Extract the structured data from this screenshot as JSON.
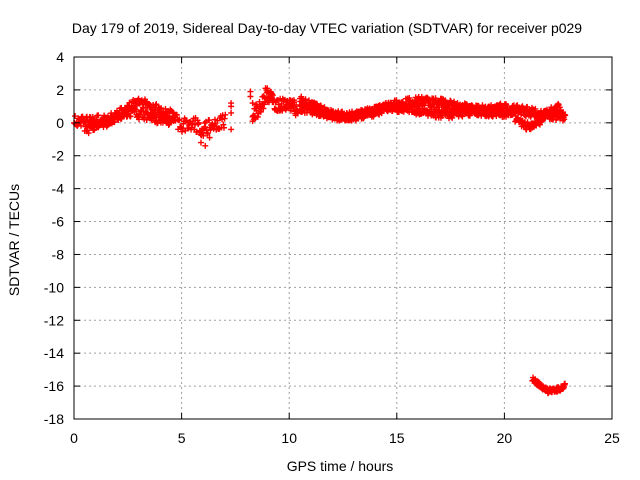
{
  "chart_data": {
    "type": "scatter",
    "title": "Day 179 of 2019, Sidereal Day-to-day VTEC variation (SDTVAR) for receiver p029",
    "xlabel": "GPS time / hours",
    "ylabel": "SDTVAR / TECUs",
    "xlim": [
      0,
      25
    ],
    "ylim": [
      -18,
      4
    ],
    "xticks": [
      0,
      5,
      10,
      15,
      20,
      25
    ],
    "yticks": [
      -18,
      -16,
      -14,
      -12,
      -10,
      -8,
      -6,
      -4,
      -2,
      0,
      2,
      4
    ],
    "grid": true,
    "marker": "plus",
    "series_color": "#ff0000",
    "series": [
      {
        "name": "p029",
        "bands": [
          {
            "x": [
              0.0,
              1.0,
              2.0,
              3.0,
              4.0,
              4.6
            ],
            "y": [
              0.1,
              0.1,
              0.4,
              1.3,
              0.7,
              0.4
            ],
            "spread": 0.35,
            "step": 0.05
          },
          {
            "x": [
              0.5,
              1.5,
              2.5,
              3.5,
              4.5
            ],
            "y": [
              -0.4,
              0.0,
              0.7,
              0.3,
              0.1
            ],
            "spread": 0.3,
            "step": 0.06
          },
          {
            "x": [
              4.6,
              5.0,
              5.5,
              6.0,
              6.5,
              7.0
            ],
            "y": [
              0.2,
              -0.1,
              0.0,
              -0.4,
              -0.1,
              0.1
            ],
            "spread": 0.45,
            "step": 0.06
          },
          {
            "x": [
              8.3,
              8.6,
              9.0,
              9.5,
              10.0,
              10.4
            ],
            "y": [
              0.4,
              0.9,
              1.7,
              1.0,
              1.1,
              0.8
            ],
            "spread": 0.45,
            "step": 0.04
          },
          {
            "x": [
              10.5,
              11.0,
              12.0,
              13.0,
              14.0,
              15.0,
              16.0,
              17.0,
              18.0,
              19.0,
              20.0,
              21.0,
              22.0,
              22.8
            ],
            "y": [
              1.4,
              1.0,
              0.5,
              0.4,
              0.7,
              1.1,
              1.3,
              1.2,
              0.9,
              0.8,
              0.9,
              0.7,
              0.5,
              0.4
            ],
            "spread": 0.3,
            "step": 0.04
          },
          {
            "x": [
              10.5,
              11.5,
              12.5,
              13.5,
              14.5,
              15.5,
              16.5,
              17.5,
              18.5,
              19.5,
              20.5
            ],
            "y": [
              0.9,
              0.6,
              0.3,
              0.5,
              1.0,
              0.8,
              0.6,
              0.5,
              0.7,
              0.6,
              0.6
            ],
            "spread": 0.25,
            "step": 0.05
          },
          {
            "x": [
              20.5,
              21.0,
              21.5,
              22.0,
              22.5,
              22.8
            ],
            "y": [
              0.2,
              -0.2,
              -0.1,
              0.6,
              1.0,
              0.3
            ],
            "spread": 0.25,
            "step": 0.05
          },
          {
            "x": [
              21.3,
              21.7,
              22.0,
              22.5,
              22.8
            ],
            "y": [
              -15.6,
              -16.0,
              -16.3,
              -16.2,
              -16.0
            ],
            "spread": 0.15,
            "step": 0.03
          }
        ],
        "isolated_points": [
          {
            "x": [
              5.9,
              6.1,
              6.3
            ],
            "y": [
              -1.2,
              -1.4,
              -0.9
            ]
          },
          {
            "x": [
              7.3,
              7.3,
              7.3,
              7.3
            ],
            "y": [
              0.6,
              1.0,
              1.2,
              -0.4
            ]
          },
          {
            "x": [
              8.2,
              8.2,
              8.3,
              8.3
            ],
            "y": [
              1.9,
              1.6,
              1.2,
              0.1
            ]
          },
          {
            "x": [
              8.9,
              9.0,
              9.1
            ],
            "y": [
              2.1,
              1.9,
              1.6
            ]
          }
        ]
      }
    ]
  }
}
